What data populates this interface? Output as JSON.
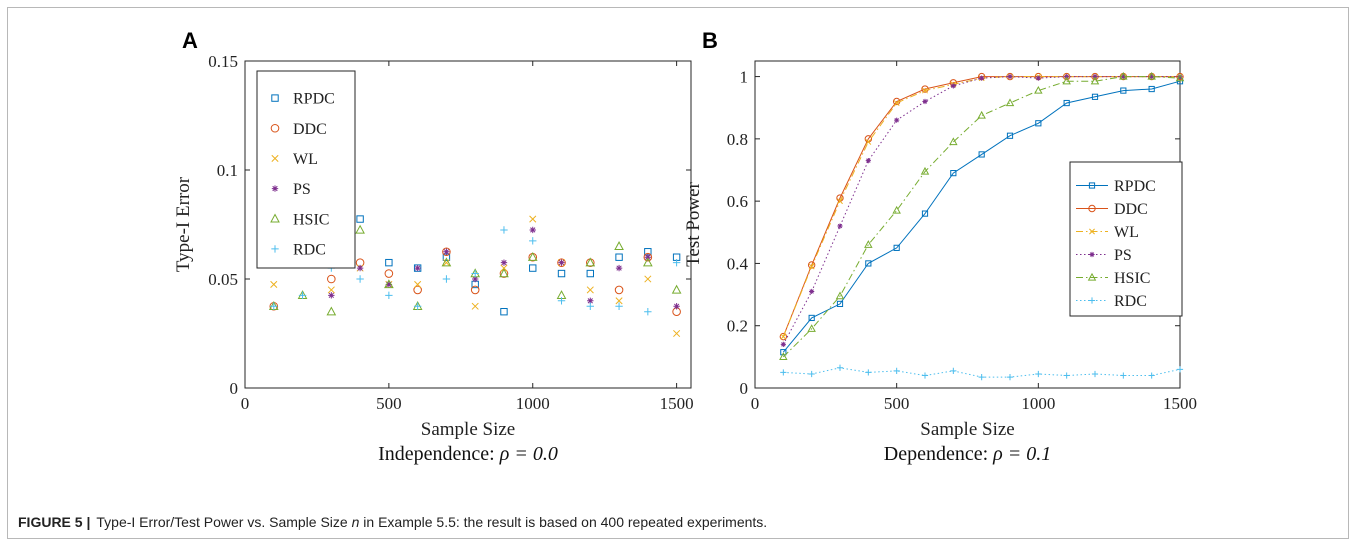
{
  "caption": {
    "label": "FIGURE 5",
    "text_before_n": "Type-I Error/Test Power vs. Sample Size ",
    "n_symbol": "n",
    "text_after_n": " in Example 5.5: the result is based on 400 repeated experiments."
  },
  "chart_data": [
    {
      "type": "scatter",
      "panel_label": "A",
      "title": "",
      "subtitle_text": "Independence:",
      "subtitle_math": "ρ = 0.0",
      "xlabel": "Sample Size",
      "ylabel": "Type-I Error",
      "xlim": [
        0,
        1550
      ],
      "ylim": [
        0,
        0.15
      ],
      "xticks": [
        0,
        500,
        1000,
        1500
      ],
      "yticks": [
        0,
        0.05,
        0.1,
        0.15
      ],
      "ytick_labels": [
        "0",
        "0.05",
        "0.1",
        "0.15"
      ],
      "legend_position": "top-left",
      "grid": false,
      "x": [
        100,
        200,
        300,
        400,
        500,
        600,
        700,
        800,
        900,
        1000,
        1100,
        1200,
        1300,
        1400,
        1500
      ],
      "series": [
        {
          "name": "RPDC",
          "marker": "square",
          "color": "#0072BD",
          "values": [
            0.0675,
            0.0725,
            0.06,
            0.0775,
            0.0575,
            0.055,
            0.06,
            0.0475,
            0.035,
            0.055,
            0.0525,
            0.0525,
            0.06,
            0.0625,
            0.06
          ]
        },
        {
          "name": "DDC",
          "marker": "circle",
          "color": "#D95319",
          "values": [
            0.0375,
            0.065,
            0.05,
            0.0575,
            0.0525,
            0.045,
            0.0625,
            0.045,
            0.0525,
            0.06,
            0.0575,
            0.0575,
            0.045,
            0.06,
            0.035
          ]
        },
        {
          "name": "WL",
          "marker": "x",
          "color": "#EDB120",
          "values": [
            0.0475,
            0.0625,
            0.045,
            0.055,
            0.0475,
            0.0475,
            0.0575,
            0.0375,
            0.055,
            0.0775,
            0.0575,
            0.045,
            0.04,
            0.05,
            0.025
          ]
        },
        {
          "name": "PS",
          "marker": "star",
          "color": "#7E2F8E",
          "values": [
            0.06,
            0.0575,
            0.0425,
            0.055,
            0.0475,
            0.055,
            0.0625,
            0.05,
            0.0575,
            0.0725,
            0.0575,
            0.04,
            0.055,
            0.06,
            0.0375
          ]
        },
        {
          "name": "HSIC",
          "marker": "triangle",
          "color": "#77AC30",
          "values": [
            0.0375,
            0.0425,
            0.035,
            0.0725,
            0.0475,
            0.0375,
            0.0575,
            0.0525,
            0.0525,
            0.06,
            0.0425,
            0.0575,
            0.065,
            0.0575,
            0.045
          ]
        },
        {
          "name": "RDC",
          "marker": "plus",
          "color": "#4DBEEE",
          "values": [
            0.0375,
            0.0425,
            0.055,
            0.05,
            0.0425,
            0.0375,
            0.05,
            0.0525,
            0.0725,
            0.0675,
            0.04,
            0.0375,
            0.0375,
            0.035,
            0.0575
          ]
        }
      ]
    },
    {
      "type": "line",
      "panel_label": "B",
      "title": "",
      "subtitle_text": "Dependence:",
      "subtitle_math": "ρ = 0.1",
      "xlabel": "Sample Size",
      "ylabel": "Test Power",
      "xlim": [
        0,
        1500
      ],
      "ylim": [
        0,
        1.05
      ],
      "xticks": [
        0,
        500,
        1000,
        1500
      ],
      "yticks": [
        0,
        0.2,
        0.4,
        0.6,
        0.8,
        1
      ],
      "ytick_labels": [
        "0",
        "0.2",
        "0.4",
        "0.6",
        "0.8",
        "1"
      ],
      "legend_position": "center-right",
      "grid": false,
      "x": [
        100,
        200,
        300,
        400,
        500,
        600,
        700,
        800,
        900,
        1000,
        1100,
        1200,
        1300,
        1400,
        1500
      ],
      "series": [
        {
          "name": "RPDC",
          "marker": "square",
          "line": "solid",
          "color": "#0072BD",
          "values": [
            0.115,
            0.225,
            0.27,
            0.4,
            0.45,
            0.56,
            0.69,
            0.75,
            0.81,
            0.85,
            0.915,
            0.935,
            0.955,
            0.96,
            0.985
          ]
        },
        {
          "name": "DDC",
          "marker": "circle",
          "line": "solid",
          "color": "#D95319",
          "values": [
            0.165,
            0.395,
            0.61,
            0.8,
            0.92,
            0.96,
            0.98,
            1.0,
            1.0,
            1.0,
            1.0,
            1.0,
            1.0,
            1.0,
            1.0
          ]
        },
        {
          "name": "WL",
          "marker": "x",
          "line": "dashdot",
          "color": "#EDB120",
          "values": [
            0.165,
            0.39,
            0.6,
            0.79,
            0.915,
            0.955,
            0.975,
            0.995,
            1.0,
            1.0,
            1.0,
            1.0,
            1.0,
            1.0,
            1.0
          ]
        },
        {
          "name": "PS",
          "marker": "star",
          "line": "dotted",
          "color": "#7E2F8E",
          "values": [
            0.14,
            0.31,
            0.52,
            0.73,
            0.86,
            0.92,
            0.97,
            0.995,
            1.0,
            0.995,
            1.0,
            1.0,
            1.0,
            1.0,
            1.0
          ]
        },
        {
          "name": "HSIC",
          "marker": "triangle",
          "line": "dashdot",
          "color": "#77AC30",
          "values": [
            0.1,
            0.19,
            0.295,
            0.46,
            0.57,
            0.695,
            0.79,
            0.875,
            0.915,
            0.955,
            0.985,
            0.985,
            1.0,
            1.0,
            0.995
          ]
        },
        {
          "name": "RDC",
          "marker": "plus",
          "line": "dotted",
          "color": "#4DBEEE",
          "values": [
            0.05,
            0.045,
            0.065,
            0.05,
            0.055,
            0.04,
            0.055,
            0.035,
            0.035,
            0.045,
            0.04,
            0.045,
            0.04,
            0.04,
            0.06
          ]
        }
      ]
    }
  ]
}
